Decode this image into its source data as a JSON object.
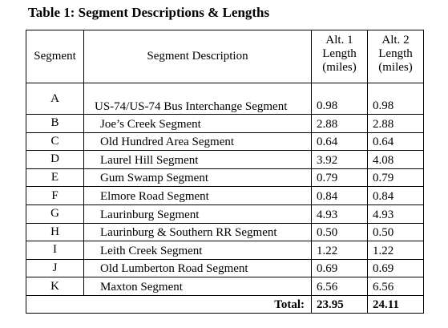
{
  "caption": "Table 1: Segment Descriptions & Lengths",
  "headers": {
    "segment": "Segment",
    "description": "Segment Description",
    "alt1": [
      "Alt. 1",
      "Length",
      "(miles)"
    ],
    "alt2": [
      "Alt. 2",
      "Length",
      "(miles)"
    ]
  },
  "rows": [
    {
      "segment": "A",
      "description": "US-74/US-74 Bus Interchange Segment",
      "alt1": "0.98",
      "alt2": "0.98"
    },
    {
      "segment": "B",
      "description": "Joe’s Creek Segment",
      "alt1": "2.88",
      "alt2": "2.88"
    },
    {
      "segment": "C",
      "description": "Old Hundred Area Segment",
      "alt1": "0.64",
      "alt2": "0.64"
    },
    {
      "segment": "D",
      "description": "Laurel Hill Segment",
      "alt1": "3.92",
      "alt2": "4.08"
    },
    {
      "segment": "E",
      "description": "Gum Swamp Segment",
      "alt1": "0.79",
      "alt2": "0.79"
    },
    {
      "segment": "F",
      "description": "Elmore Road Segment",
      "alt1": "0.84",
      "alt2": "0.84"
    },
    {
      "segment": "G",
      "description": "Laurinburg Segment",
      "alt1": "4.93",
      "alt2": "4.93"
    },
    {
      "segment": "H",
      "description": "Laurinburg & Southern RR Segment",
      "alt1": "0.50",
      "alt2": "0.50"
    },
    {
      "segment": "I",
      "description": "Leith Creek Segment",
      "alt1": "1.22",
      "alt2": "1.22"
    },
    {
      "segment": "J",
      "description": "Old Lumberton Road Segment",
      "alt1": "0.69",
      "alt2": "0.69"
    },
    {
      "segment": "K",
      "description": "Maxton Segment",
      "alt1": "6.56",
      "alt2": "6.56"
    }
  ],
  "total": {
    "label": "Total:",
    "alt1": "23.95",
    "alt2": "24.11"
  }
}
